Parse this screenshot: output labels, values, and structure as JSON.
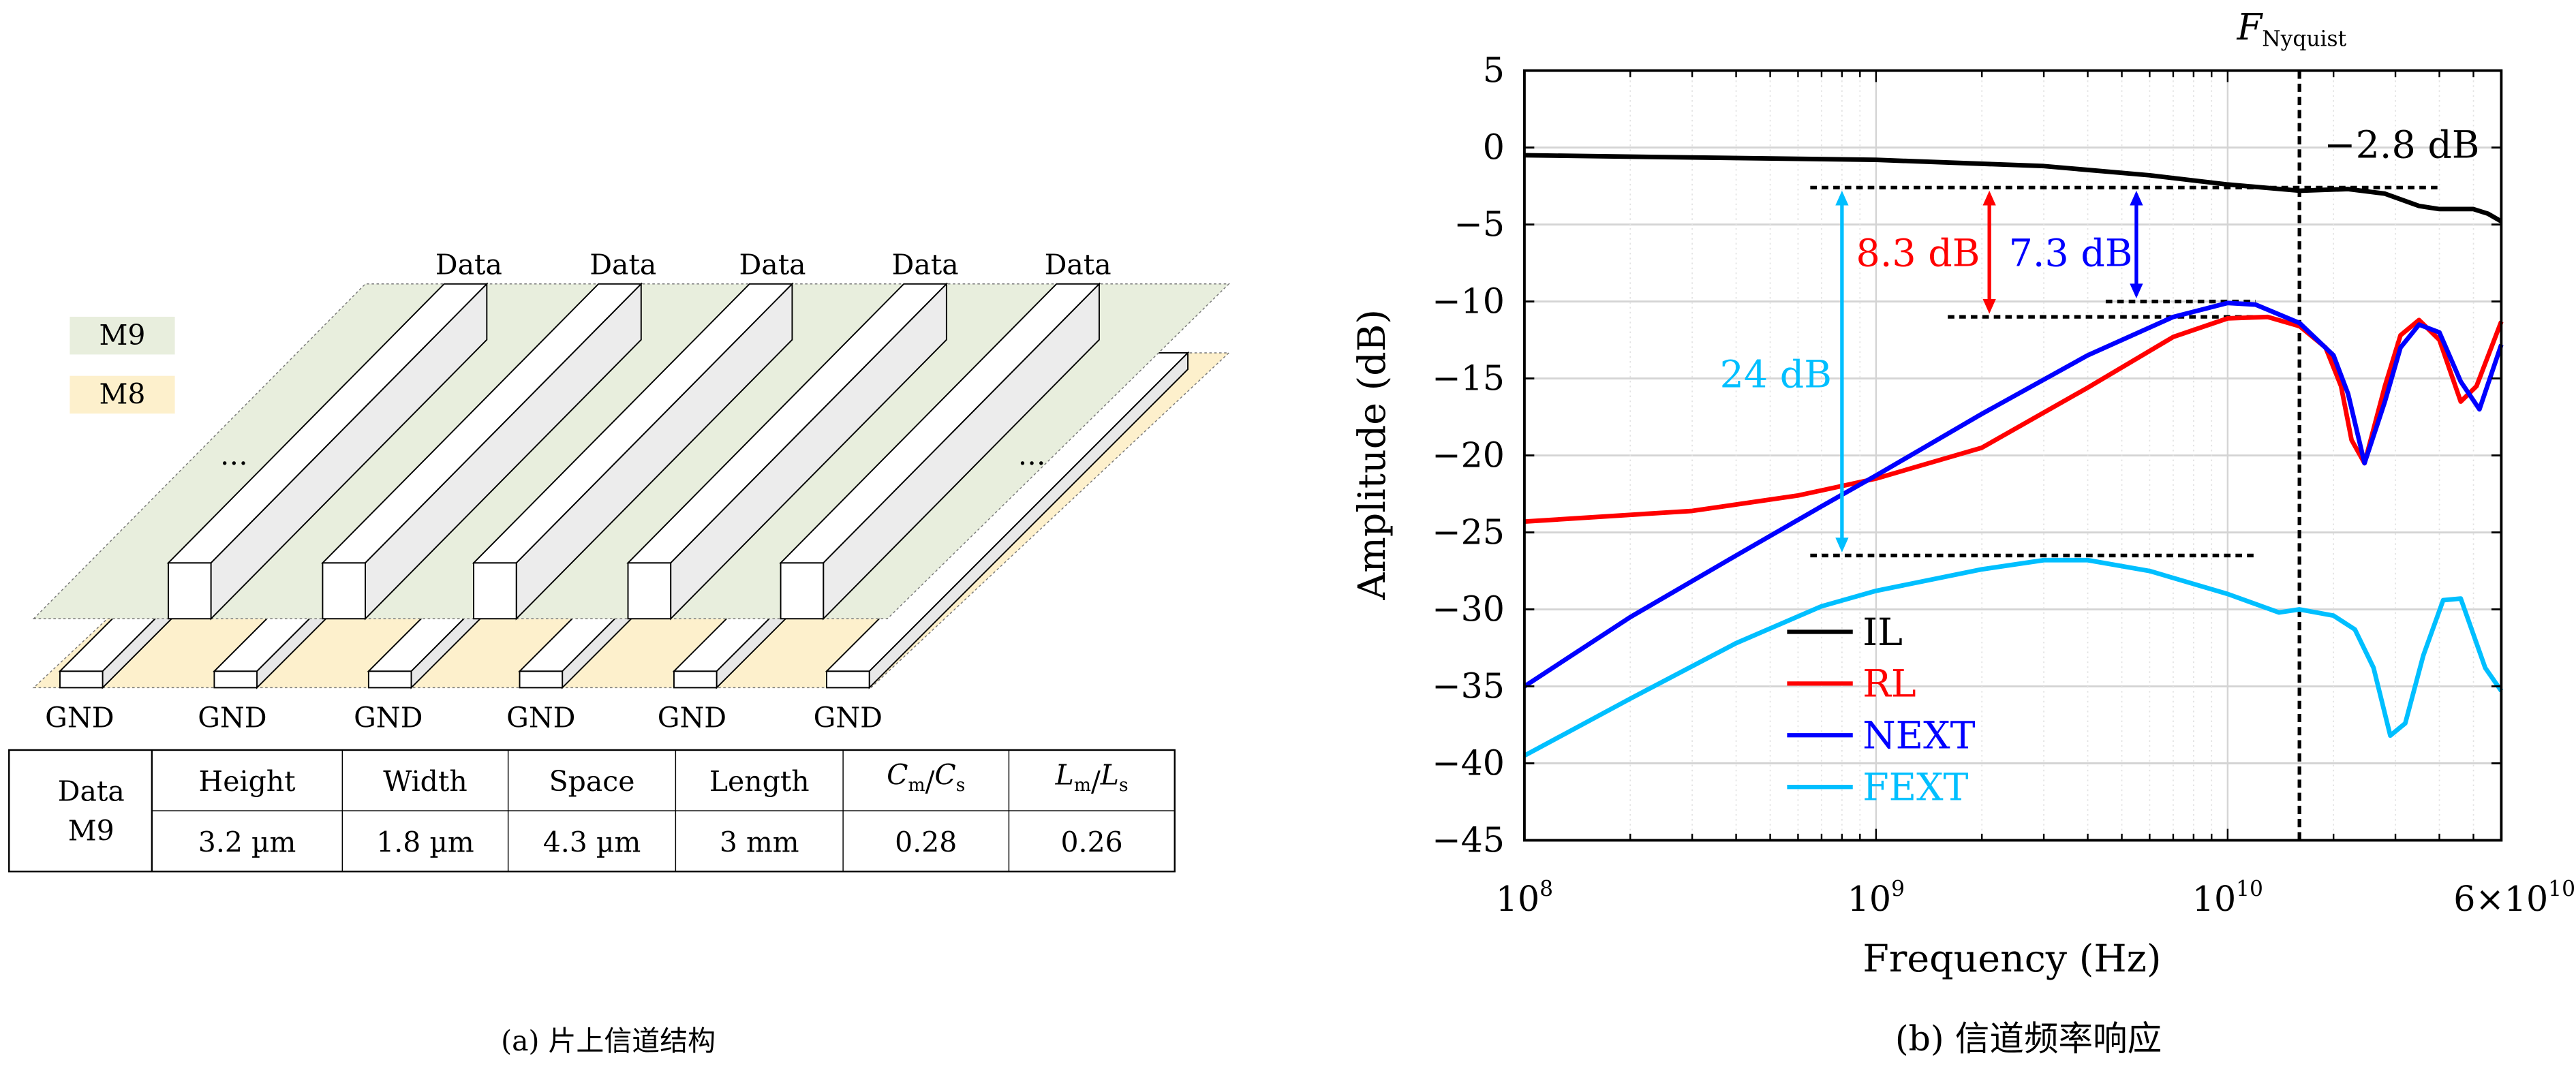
{
  "panel_a": {
    "legend": [
      {
        "label": "M9",
        "color": "#e8eedd"
      },
      {
        "label": "M8",
        "color": "#fdf0cc"
      }
    ],
    "data_labels": [
      "Data",
      "Data",
      "Data",
      "Data",
      "Data"
    ],
    "gnd_labels": [
      "GND",
      "GND",
      "GND",
      "GND",
      "GND",
      "GND"
    ],
    "ellipsis": [
      "…",
      "…"
    ],
    "table": {
      "row_header": [
        "Data",
        "M9"
      ],
      "headers": [
        "Height",
        "Width",
        "Space",
        "Length",
        "Cm/Cs",
        "Lm/Ls"
      ],
      "values": [
        "3.2 µm",
        "1.8 µm",
        "4.3 µm",
        "3 mm",
        "0.28",
        "0.26"
      ]
    },
    "caption": "(a) 片上信道结构"
  },
  "panel_b": {
    "caption": "(b) 信道频率响应"
  },
  "chart_data": {
    "type": "line",
    "xlabel": "Frequency (Hz)",
    "ylabel": "Amplitude (dB)",
    "xscale": "log",
    "xlim": [
      100000000.0,
      60000000000.0
    ],
    "ylim": [
      -45,
      5
    ],
    "xticks": [
      100000000.0,
      1000000000.0,
      10000000000.0,
      60000000000.0
    ],
    "xtick_labels": [
      [
        "10",
        "8"
      ],
      [
        "10",
        "9"
      ],
      [
        "10",
        "10"
      ],
      [
        "6×10",
        "10"
      ]
    ],
    "yticks": [
      5,
      0,
      -5,
      -10,
      -15,
      -20,
      -25,
      -30,
      -35,
      -40,
      -45
    ],
    "ytick_labels": [
      "5",
      "0",
      "−5",
      "−10",
      "−15",
      "−20",
      "−25",
      "−30",
      "−35",
      "−40",
      "−45"
    ],
    "grid": true,
    "legend_position": "bottom-left",
    "series": [
      {
        "name": "IL",
        "color": "#000000",
        "x": [
          100000000.0,
          1000000000.0,
          3000000000.0,
          6000000000.0,
          10000000000.0,
          16000000000.0,
          22000000000.0,
          28000000000.0,
          35000000000.0,
          40000000000.0,
          50000000000.0,
          55000000000.0,
          60000000000.0
        ],
        "y": [
          -0.5,
          -0.8,
          -1.2,
          -1.8,
          -2.4,
          -2.8,
          -2.7,
          -3.0,
          -3.8,
          -4.0,
          -4.0,
          -4.3,
          -4.8
        ]
      },
      {
        "name": "RL",
        "color": "#ff0000",
        "x": [
          100000000.0,
          300000000.0,
          600000000.0,
          1000000000.0,
          2000000000.0,
          4000000000.0,
          7000000000.0,
          10000000000.0,
          13000000000.0,
          16000000000.0,
          19000000000.0,
          21000000000.0,
          22500000000.0,
          24500000000.0,
          28000000000.0,
          31000000000.0,
          35000000000.0,
          40000000000.0,
          46000000000.0,
          51000000000.0,
          60000000000.0
        ],
        "y": [
          -24.3,
          -23.6,
          -22.6,
          -21.5,
          -19.5,
          -15.6,
          -12.3,
          -11.1,
          -11.0,
          -11.6,
          -13,
          -15.5,
          -19,
          -20.5,
          -15.5,
          -12.2,
          -11.2,
          -12.5,
          -16.5,
          -15.5,
          -11.3
        ]
      },
      {
        "name": "NEXT",
        "color": "#0000ff",
        "x": [
          100000000.0,
          200000000.0,
          400000000.0,
          700000000.0,
          1000000000.0,
          2000000000.0,
          4000000000.0,
          7000000000.0,
          10000000000.0,
          12000000000.0,
          16000000000.0,
          20000000000.0,
          22000000000.0,
          24500000000.0,
          28000000000.0,
          31000000000.0,
          35000000000.0,
          40000000000.0,
          46000000000.0,
          52000000000.0,
          60000000000.0
        ],
        "y": [
          -35,
          -30.5,
          -26.5,
          -23.3,
          -21.3,
          -17.3,
          -13.5,
          -11,
          -10.1,
          -10.2,
          -11.4,
          -13.5,
          -16,
          -20.5,
          -16.5,
          -13,
          -11.5,
          -12,
          -15.2,
          -17,
          -12.8
        ]
      },
      {
        "name": "FEXT",
        "color": "#00bfff",
        "x": [
          100000000.0,
          200000000.0,
          400000000.0,
          700000000.0,
          1000000000.0,
          2000000000.0,
          3000000000.0,
          4000000000.0,
          6000000000.0,
          10000000000.0,
          14000000000.0,
          16000000000.0,
          20000000000.0,
          23000000000.0,
          26000000000.0,
          29000000000.0,
          32000000000.0,
          36000000000.0,
          41000000000.0,
          46000000000.0,
          54000000000.0,
          60000000000.0
        ],
        "y": [
          -39.5,
          -35.8,
          -32.2,
          -29.8,
          -28.8,
          -27.4,
          -26.8,
          -26.8,
          -27.5,
          -29,
          -30.2,
          -30,
          -30.4,
          -31.3,
          -33.8,
          -38.2,
          -37.4,
          -33,
          -29.4,
          -29.3,
          -33.8,
          -35.3
        ]
      }
    ],
    "nyquist": {
      "x": 16000000000.0,
      "label": "F",
      "subscript": "Nyquist"
    },
    "reference_lines": [
      {
        "y": -2.6,
        "x": [
          650000000.0,
          40000000000.0
        ]
      },
      {
        "y": -10,
        "x": [
          4500000000.0,
          12000000000.0
        ]
      },
      {
        "y": -11,
        "x": [
          1600000000.0,
          12000000000.0
        ]
      },
      {
        "y": -26.5,
        "x": [
          650000000.0,
          12000000000.0
        ]
      }
    ],
    "annotations": [
      {
        "text": "24 dB",
        "color": "#00bfff",
        "x": 800000000.0,
        "y_from": -2.8,
        "y_to": -26.3
      },
      {
        "text": "8.3 dB",
        "color": "#ff0000",
        "x": 2100000000.0,
        "y_from": -2.8,
        "y_to": -10.8
      },
      {
        "text": "7.3 dB",
        "color": "#0000ff",
        "x": 5500000000.0,
        "y_from": -2.8,
        "y_to": -9.8
      },
      {
        "text": "−2.8 dB",
        "color": "#000000"
      }
    ]
  }
}
